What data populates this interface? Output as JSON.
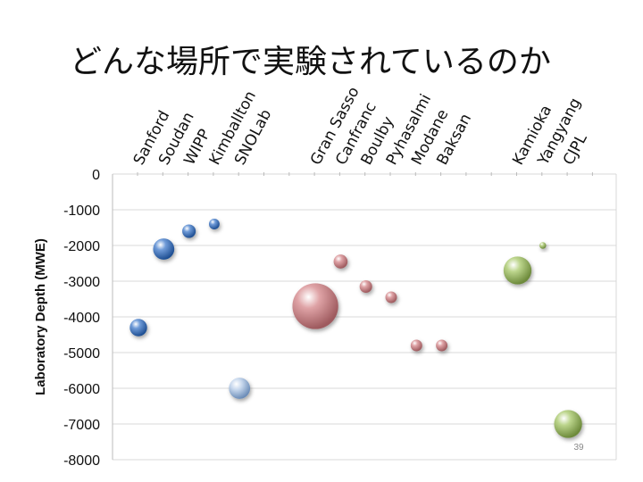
{
  "slide": {
    "title": "どんな場所で実験されているのか",
    "page_number": "39"
  },
  "chart_data": {
    "type": "scatter",
    "title": "どんな場所で実験されているのか",
    "xlabel": "",
    "ylabel": "Laboratory Depth (MWE)",
    "ylim": [
      -8000,
      0
    ],
    "yticks": [
      0,
      -1000,
      -2000,
      -3000,
      -4000,
      -5000,
      -6000,
      -7000,
      -8000
    ],
    "grid": true,
    "colors": {
      "blue": "#3a6fb5",
      "steel": "#9bb7d9",
      "pink": "#c9868a",
      "green": "#9dbb66",
      "gridline": "#d9d9d9"
    },
    "series": [
      {
        "group": "north-america",
        "color": "#3a6fb5",
        "points": [
          {
            "label": "Sanford",
            "x": 1,
            "y": -4300,
            "size": 0.36
          },
          {
            "label": "Soudan",
            "x": 2,
            "y": -2100,
            "size": 0.44
          },
          {
            "label": "WIPP",
            "x": 3,
            "y": -1600,
            "size": 0.28
          },
          {
            "label": "Kimballton",
            "x": 4,
            "y": -1400,
            "size": 0.22
          },
          {
            "label": "SNOLab",
            "x": 5,
            "y": -6000,
            "size": 0.44,
            "color": "#9bb7d9"
          }
        ]
      },
      {
        "group": "europe",
        "color": "#c9868a",
        "points": [
          {
            "label": "Gran Sasso",
            "x": 8,
            "y": -3700,
            "size": 0.95
          },
          {
            "label": "Canfranc",
            "x": 9,
            "y": -2450,
            "size": 0.29
          },
          {
            "label": "Boulby",
            "x": 10,
            "y": -3150,
            "size": 0.26
          },
          {
            "label": "Pyhasalmi",
            "x": 11,
            "y": -3450,
            "size": 0.24
          },
          {
            "label": "Modane",
            "x": 12,
            "y": -4800,
            "size": 0.24
          },
          {
            "label": "Baksan",
            "x": 13,
            "y": -4800,
            "size": 0.24
          }
        ]
      },
      {
        "group": "asia",
        "color": "#9dbb66",
        "points": [
          {
            "label": "Kamioka",
            "x": 16,
            "y": -2700,
            "size": 0.58
          },
          {
            "label": "Yangyang",
            "x": 17,
            "y": -2000,
            "size": 0.14
          },
          {
            "label": "CJPL",
            "x": 18,
            "y": -7000,
            "size": 0.58
          }
        ]
      }
    ]
  }
}
